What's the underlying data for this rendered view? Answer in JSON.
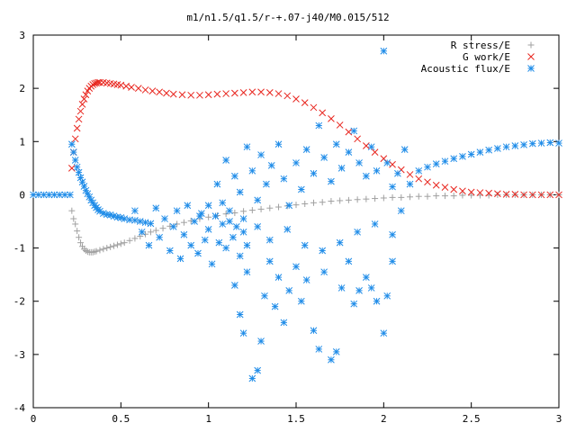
{
  "chart_data": {
    "type": "scatter",
    "title": "m1/n1.5/q1.5/r-+.07-j40/M0.015/512",
    "xlabel": "",
    "ylabel": "",
    "xlim": [
      0,
      3
    ],
    "ylim": [
      -4,
      3
    ],
    "x_ticks": [
      "0",
      "0.5",
      "1",
      "1.5",
      "2",
      "2.5",
      "3"
    ],
    "y_ticks": [
      "-4",
      "-3",
      "-2",
      "-1",
      "0",
      "1",
      "2",
      "3"
    ],
    "grid": false,
    "legend_position": "top-right",
    "series": [
      {
        "name": "R stress/E",
        "marker": "plus",
        "color": "#a0a0a0",
        "points": [
          [
            0.22,
            -0.3
          ],
          [
            0.23,
            -0.45
          ],
          [
            0.24,
            -0.55
          ],
          [
            0.25,
            -0.68
          ],
          [
            0.26,
            -0.8
          ],
          [
            0.27,
            -0.9
          ],
          [
            0.28,
            -0.97
          ],
          [
            0.29,
            -1.02
          ],
          [
            0.3,
            -1.05
          ],
          [
            0.31,
            -1.07
          ],
          [
            0.32,
            -1.08
          ],
          [
            0.33,
            -1.08
          ],
          [
            0.34,
            -1.08
          ],
          [
            0.35,
            -1.07
          ],
          [
            0.36,
            -1.06
          ],
          [
            0.38,
            -1.04
          ],
          [
            0.4,
            -1.02
          ],
          [
            0.42,
            -1.0
          ],
          [
            0.44,
            -0.98
          ],
          [
            0.46,
            -0.96
          ],
          [
            0.48,
            -0.94
          ],
          [
            0.5,
            -0.92
          ],
          [
            0.52,
            -0.9
          ],
          [
            0.55,
            -0.86
          ],
          [
            0.58,
            -0.82
          ],
          [
            0.61,
            -0.78
          ],
          [
            0.64,
            -0.74
          ],
          [
            0.67,
            -0.7
          ],
          [
            0.7,
            -0.67
          ],
          [
            0.74,
            -0.63
          ],
          [
            0.78,
            -0.59
          ],
          [
            0.82,
            -0.55
          ],
          [
            0.86,
            -0.52
          ],
          [
            0.9,
            -0.49
          ],
          [
            0.95,
            -0.45
          ],
          [
            1.0,
            -0.42
          ],
          [
            1.05,
            -0.39
          ],
          [
            1.1,
            -0.36
          ],
          [
            1.15,
            -0.34
          ],
          [
            1.2,
            -0.31
          ],
          [
            1.25,
            -0.29
          ],
          [
            1.3,
            -0.27
          ],
          [
            1.35,
            -0.25
          ],
          [
            1.4,
            -0.23
          ],
          [
            1.45,
            -0.21
          ],
          [
            1.5,
            -0.19
          ],
          [
            1.55,
            -0.17
          ],
          [
            1.6,
            -0.15
          ],
          [
            1.65,
            -0.14
          ],
          [
            1.7,
            -0.12
          ],
          [
            1.75,
            -0.11
          ],
          [
            1.8,
            -0.1
          ],
          [
            1.85,
            -0.09
          ],
          [
            1.9,
            -0.08
          ],
          [
            1.95,
            -0.07
          ],
          [
            2.0,
            -0.06
          ],
          [
            2.05,
            -0.05
          ],
          [
            2.1,
            -0.05
          ],
          [
            2.15,
            -0.04
          ],
          [
            2.2,
            -0.03
          ],
          [
            2.25,
            -0.03
          ],
          [
            2.3,
            -0.02
          ],
          [
            2.35,
            -0.02
          ],
          [
            2.4,
            -0.02
          ],
          [
            2.45,
            -0.01
          ],
          [
            2.5,
            -0.01
          ],
          [
            2.55,
            -0.01
          ],
          [
            2.6,
            -0.01
          ],
          [
            2.65,
            0.0
          ],
          [
            2.7,
            0.0
          ],
          [
            2.75,
            0.0
          ],
          [
            2.8,
            0.0
          ],
          [
            2.85,
            0.0
          ],
          [
            2.9,
            0.0
          ],
          [
            2.95,
            0.0
          ],
          [
            3.0,
            0.0
          ]
        ]
      },
      {
        "name": "G work/E",
        "marker": "cross",
        "color": "#e8251e",
        "points": [
          [
            0.22,
            0.5
          ],
          [
            0.23,
            0.8
          ],
          [
            0.24,
            1.05
          ],
          [
            0.25,
            1.25
          ],
          [
            0.26,
            1.42
          ],
          [
            0.27,
            1.57
          ],
          [
            0.28,
            1.7
          ],
          [
            0.29,
            1.8
          ],
          [
            0.3,
            1.88
          ],
          [
            0.31,
            1.95
          ],
          [
            0.32,
            2.0
          ],
          [
            0.33,
            2.04
          ],
          [
            0.34,
            2.07
          ],
          [
            0.35,
            2.09
          ],
          [
            0.36,
            2.1
          ],
          [
            0.37,
            2.11
          ],
          [
            0.38,
            2.11
          ],
          [
            0.4,
            2.11
          ],
          [
            0.42,
            2.1
          ],
          [
            0.44,
            2.09
          ],
          [
            0.46,
            2.08
          ],
          [
            0.48,
            2.07
          ],
          [
            0.5,
            2.06
          ],
          [
            0.53,
            2.04
          ],
          [
            0.56,
            2.02
          ],
          [
            0.6,
            2.0
          ],
          [
            0.64,
            1.97
          ],
          [
            0.68,
            1.95
          ],
          [
            0.72,
            1.93
          ],
          [
            0.76,
            1.91
          ],
          [
            0.8,
            1.89
          ],
          [
            0.85,
            1.88
          ],
          [
            0.9,
            1.87
          ],
          [
            0.95,
            1.87
          ],
          [
            1.0,
            1.88
          ],
          [
            1.05,
            1.89
          ],
          [
            1.1,
            1.9
          ],
          [
            1.15,
            1.91
          ],
          [
            1.2,
            1.92
          ],
          [
            1.25,
            1.93
          ],
          [
            1.3,
            1.93
          ],
          [
            1.35,
            1.92
          ],
          [
            1.4,
            1.9
          ],
          [
            1.45,
            1.86
          ],
          [
            1.5,
            1.8
          ],
          [
            1.55,
            1.73
          ],
          [
            1.6,
            1.64
          ],
          [
            1.65,
            1.54
          ],
          [
            1.7,
            1.43
          ],
          [
            1.75,
            1.31
          ],
          [
            1.8,
            1.18
          ],
          [
            1.85,
            1.05
          ],
          [
            1.9,
            0.92
          ],
          [
            1.95,
            0.8
          ],
          [
            2.0,
            0.68
          ],
          [
            2.05,
            0.57
          ],
          [
            2.1,
            0.47
          ],
          [
            2.15,
            0.38
          ],
          [
            2.2,
            0.3
          ],
          [
            2.25,
            0.24
          ],
          [
            2.3,
            0.18
          ],
          [
            2.35,
            0.14
          ],
          [
            2.4,
            0.1
          ],
          [
            2.45,
            0.07
          ],
          [
            2.5,
            0.05
          ],
          [
            2.55,
            0.04
          ],
          [
            2.6,
            0.03
          ],
          [
            2.65,
            0.02
          ],
          [
            2.7,
            0.01
          ],
          [
            2.75,
            0.01
          ],
          [
            2.8,
            0.0
          ],
          [
            2.85,
            0.0
          ],
          [
            2.9,
            0.0
          ],
          [
            2.95,
            0.0
          ],
          [
            3.0,
            0.0
          ]
        ]
      },
      {
        "name": "Acoustic flux/E",
        "marker": "star",
        "color": "#1f8ce8",
        "points": [
          [
            0.0,
            0.0
          ],
          [
            0.03,
            0.0
          ],
          [
            0.06,
            0.0
          ],
          [
            0.09,
            0.0
          ],
          [
            0.12,
            0.0
          ],
          [
            0.15,
            0.0
          ],
          [
            0.18,
            0.0
          ],
          [
            0.21,
            0.0
          ],
          [
            0.22,
            0.95
          ],
          [
            0.23,
            0.8
          ],
          [
            0.24,
            0.65
          ],
          [
            0.25,
            0.52
          ],
          [
            0.26,
            0.42
          ],
          [
            0.27,
            0.32
          ],
          [
            0.28,
            0.24
          ],
          [
            0.29,
            0.16
          ],
          [
            0.3,
            0.08
          ],
          [
            0.31,
            0.02
          ],
          [
            0.32,
            -0.04
          ],
          [
            0.33,
            -0.1
          ],
          [
            0.34,
            -0.15
          ],
          [
            0.35,
            -0.2
          ],
          [
            0.36,
            -0.24
          ],
          [
            0.37,
            -0.28
          ],
          [
            0.38,
            -0.31
          ],
          [
            0.4,
            -0.35
          ],
          [
            0.42,
            -0.37
          ],
          [
            0.44,
            -0.38
          ],
          [
            0.46,
            -0.4
          ],
          [
            0.48,
            -0.42
          ],
          [
            0.5,
            -0.43
          ],
          [
            0.52,
            -0.45
          ],
          [
            0.55,
            -0.47
          ],
          [
            0.58,
            -0.48
          ],
          [
            0.61,
            -0.5
          ],
          [
            0.64,
            -0.52
          ],
          [
            0.67,
            -0.54
          ],
          [
            0.58,
            -0.3
          ],
          [
            0.62,
            -0.7
          ],
          [
            0.66,
            -0.95
          ],
          [
            0.7,
            -0.25
          ],
          [
            0.72,
            -0.8
          ],
          [
            0.75,
            -0.45
          ],
          [
            0.78,
            -1.05
          ],
          [
            0.8,
            -0.6
          ],
          [
            0.82,
            -0.3
          ],
          [
            0.84,
            -1.2
          ],
          [
            0.86,
            -0.75
          ],
          [
            0.88,
            -0.2
          ],
          [
            0.9,
            -0.95
          ],
          [
            0.92,
            -0.5
          ],
          [
            0.94,
            -1.1
          ],
          [
            0.96,
            -0.35
          ],
          [
            0.98,
            -0.85
          ],
          [
            1.0,
            -0.65
          ],
          [
            1.02,
            -1.3
          ],
          [
            1.04,
            -0.4
          ],
          [
            1.06,
            -0.9
          ],
          [
            1.08,
            -0.55
          ],
          [
            1.1,
            -1.0
          ],
          [
            1.12,
            -0.3
          ],
          [
            1.14,
            -0.8
          ],
          [
            1.16,
            -0.6
          ],
          [
            1.18,
            -1.15
          ],
          [
            1.2,
            -0.45
          ],
          [
            1.22,
            -0.95
          ],
          [
            1.05,
            0.2
          ],
          [
            1.1,
            0.65
          ],
          [
            1.15,
            0.35
          ],
          [
            1.18,
            0.05
          ],
          [
            1.22,
            0.9
          ],
          [
            1.25,
            0.45
          ],
          [
            1.28,
            -0.1
          ],
          [
            1.3,
            0.75
          ],
          [
            1.33,
            0.2
          ],
          [
            1.36,
            0.55
          ],
          [
            1.4,
            0.95
          ],
          [
            1.43,
            0.3
          ],
          [
            1.46,
            -0.2
          ],
          [
            1.5,
            0.6
          ],
          [
            1.53,
            0.1
          ],
          [
            1.56,
            0.85
          ],
          [
            1.6,
            0.4
          ],
          [
            1.63,
            1.3
          ],
          [
            1.66,
            0.7
          ],
          [
            1.7,
            0.25
          ],
          [
            1.73,
            0.95
          ],
          [
            1.76,
            0.5
          ],
          [
            1.8,
            0.8
          ],
          [
            1.83,
            1.2
          ],
          [
            1.86,
            0.6
          ],
          [
            1.9,
            0.35
          ],
          [
            1.93,
            0.9
          ],
          [
            1.96,
            0.45
          ],
          [
            2.0,
            2.7
          ],
          [
            2.02,
            0.6
          ],
          [
            2.05,
            0.15
          ],
          [
            2.08,
            0.4
          ],
          [
            2.1,
            -0.3
          ],
          [
            2.12,
            0.85
          ],
          [
            2.15,
            0.2
          ],
          [
            1.15,
            -1.7
          ],
          [
            1.18,
            -2.25
          ],
          [
            1.2,
            -2.6
          ],
          [
            1.22,
            -1.45
          ],
          [
            1.25,
            -3.45
          ],
          [
            1.28,
            -3.3
          ],
          [
            1.3,
            -2.75
          ],
          [
            1.32,
            -1.9
          ],
          [
            1.35,
            -1.25
          ],
          [
            1.38,
            -2.1
          ],
          [
            1.4,
            -1.55
          ],
          [
            1.43,
            -2.4
          ],
          [
            1.46,
            -1.8
          ],
          [
            1.5,
            -1.35
          ],
          [
            1.53,
            -2.0
          ],
          [
            1.56,
            -1.6
          ],
          [
            1.6,
            -2.55
          ],
          [
            1.63,
            -2.9
          ],
          [
            1.66,
            -1.45
          ],
          [
            1.7,
            -3.1
          ],
          [
            1.73,
            -2.95
          ],
          [
            1.76,
            -1.75
          ],
          [
            1.8,
            -1.25
          ],
          [
            1.83,
            -2.05
          ],
          [
            1.86,
            -1.8
          ],
          [
            1.9,
            -1.55
          ],
          [
            1.93,
            -1.75
          ],
          [
            1.96,
            -2.0
          ],
          [
            2.0,
            -2.6
          ],
          [
            2.02,
            -1.9
          ],
          [
            2.05,
            -1.25
          ],
          [
            0.95,
            -0.4
          ],
          [
            1.0,
            -0.2
          ],
          [
            1.08,
            -0.15
          ],
          [
            1.12,
            -0.5
          ],
          [
            1.2,
            -0.7
          ],
          [
            1.28,
            -0.6
          ],
          [
            1.35,
            -0.85
          ],
          [
            1.45,
            -0.65
          ],
          [
            1.55,
            -0.95
          ],
          [
            1.65,
            -1.05
          ],
          [
            1.75,
            -0.9
          ],
          [
            1.85,
            -0.7
          ],
          [
            1.95,
            -0.55
          ],
          [
            2.05,
            -0.75
          ],
          [
            2.2,
            0.45
          ],
          [
            2.25,
            0.52
          ],
          [
            2.3,
            0.58
          ],
          [
            2.35,
            0.63
          ],
          [
            2.4,
            0.68
          ],
          [
            2.45,
            0.72
          ],
          [
            2.5,
            0.76
          ],
          [
            2.55,
            0.8
          ],
          [
            2.6,
            0.84
          ],
          [
            2.65,
            0.87
          ],
          [
            2.7,
            0.9
          ],
          [
            2.75,
            0.92
          ],
          [
            2.8,
            0.94
          ],
          [
            2.85,
            0.96
          ],
          [
            2.9,
            0.97
          ],
          [
            2.95,
            0.98
          ],
          [
            3.0,
            0.97
          ]
        ]
      }
    ]
  }
}
